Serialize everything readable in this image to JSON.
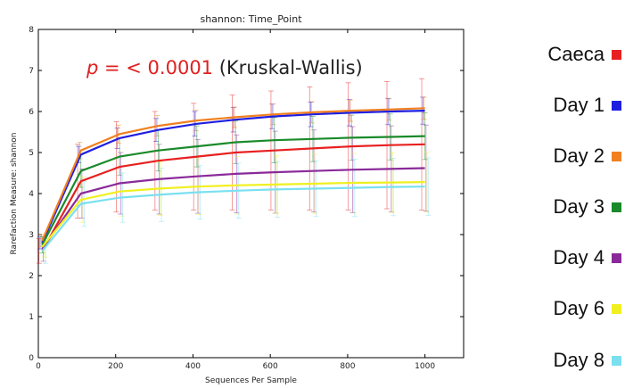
{
  "chart_data": {
    "type": "line",
    "title": "shannon: Time_Point",
    "xlabel": "Sequences Per Sample",
    "ylabel": "Rarefaction Measure: shannon",
    "xlim": [
      0,
      1100
    ],
    "ylim": [
      0,
      8
    ],
    "xticks": [
      0,
      200,
      400,
      600,
      800,
      1000
    ],
    "yticks": [
      0,
      1,
      2,
      3,
      4,
      5,
      6,
      7,
      8
    ],
    "annotation": {
      "p_symbol": "p",
      "p_value": "= < 0.0001",
      "test": "(Kruskal-Wallis)"
    },
    "x": [
      10,
      110,
      210,
      310,
      410,
      510,
      610,
      710,
      810,
      910,
      1000
    ],
    "series": [
      {
        "name": "Caeca",
        "color": "#e82020",
        "values": [
          2.6,
          4.3,
          4.65,
          4.8,
          4.9,
          5.0,
          5.05,
          5.1,
          5.15,
          5.18,
          5.2
        ],
        "errors": [
          0.3,
          0.9,
          1.1,
          1.2,
          1.3,
          1.4,
          1.45,
          1.5,
          1.55,
          1.55,
          1.6
        ]
      },
      {
        "name": "Day 1",
        "color": "#1f1fe0",
        "values": [
          2.8,
          4.95,
          5.35,
          5.55,
          5.7,
          5.8,
          5.88,
          5.93,
          5.97,
          6.0,
          6.02
        ],
        "errors": [
          0.15,
          0.2,
          0.25,
          0.28,
          0.3,
          0.3,
          0.3,
          0.3,
          0.32,
          0.32,
          0.33
        ]
      },
      {
        "name": "Day 2",
        "color": "#f08020",
        "values": [
          2.85,
          5.05,
          5.45,
          5.65,
          5.78,
          5.86,
          5.93,
          5.98,
          6.02,
          6.05,
          6.08
        ],
        "errors": [
          0.15,
          0.2,
          0.22,
          0.25,
          0.25,
          0.25,
          0.25,
          0.26,
          0.26,
          0.26,
          0.27
        ]
      },
      {
        "name": "Day 3",
        "color": "#1a8a2a",
        "values": [
          2.75,
          4.55,
          4.9,
          5.05,
          5.15,
          5.25,
          5.3,
          5.33,
          5.36,
          5.38,
          5.4
        ],
        "errors": [
          0.2,
          0.4,
          0.45,
          0.5,
          0.5,
          0.52,
          0.55,
          0.55,
          0.55,
          0.56,
          0.57
        ]
      },
      {
        "name": "Day 4",
        "color": "#8a2a9a",
        "values": [
          2.65,
          4.0,
          4.25,
          4.35,
          4.42,
          4.48,
          4.52,
          4.55,
          4.58,
          4.6,
          4.62
        ],
        "errors": [
          0.3,
          0.6,
          0.75,
          0.85,
          0.9,
          0.95,
          1.0,
          1.0,
          1.05,
          1.05,
          1.05
        ]
      },
      {
        "name": "Day 6",
        "color": "#f0f020",
        "values": [
          2.7,
          3.85,
          4.05,
          4.12,
          4.17,
          4.2,
          4.22,
          4.24,
          4.26,
          4.27,
          4.28
        ],
        "errors": [
          0.25,
          0.55,
          0.6,
          0.65,
          0.68,
          0.7,
          0.7,
          0.72,
          0.72,
          0.73,
          0.73
        ]
      },
      {
        "name": "Day 8",
        "color": "#7ae0f0",
        "values": [
          2.6,
          3.75,
          3.9,
          3.97,
          4.03,
          4.07,
          4.1,
          4.12,
          4.14,
          4.16,
          4.17
        ],
        "errors": [
          0.3,
          0.55,
          0.6,
          0.65,
          0.65,
          0.67,
          0.68,
          0.68,
          0.7,
          0.7,
          0.7
        ]
      }
    ],
    "grid": false,
    "legend_position": "right"
  }
}
